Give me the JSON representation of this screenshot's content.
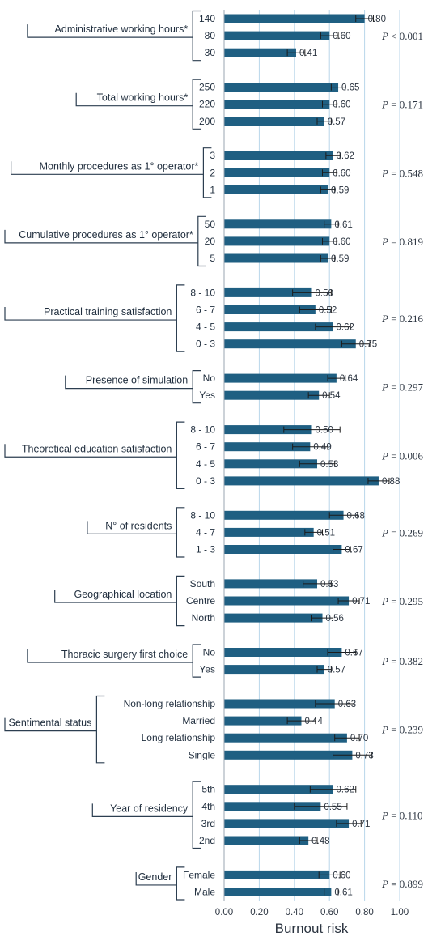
{
  "chart_data": {
    "type": "bar",
    "orientation": "horizontal",
    "xlabel": "Burnout risk",
    "xlim": [
      0,
      1
    ],
    "xticks": [
      "0.00",
      "0.20",
      "0.40",
      "0.60",
      "0.80",
      "1.00"
    ],
    "grid": "vertical",
    "bar_color": "#1f5f82",
    "grid_color": "#b8d6ea",
    "groups": [
      {
        "label": "Administrative working hours*",
        "p_prefix": "P",
        "p_text": " < 0.001",
        "bars": [
          {
            "category": "140",
            "value": 0.8,
            "label": "0.80",
            "err": 0.05
          },
          {
            "category": "80",
            "value": 0.6,
            "label": "0.60",
            "err": 0.05
          },
          {
            "category": "30",
            "value": 0.41,
            "label": "0.41",
            "err": 0.05
          }
        ]
      },
      {
        "label": "Total working hours*",
        "p_prefix": "P",
        "p_text": " = 0.171",
        "bars": [
          {
            "category": "250",
            "value": 0.65,
            "label": "0.65",
            "err": 0.04
          },
          {
            "category": "220",
            "value": 0.6,
            "label": "0.60",
            "err": 0.04
          },
          {
            "category": "200",
            "value": 0.57,
            "label": "0.57",
            "err": 0.04
          }
        ]
      },
      {
        "label": "Monthly procedures as 1° operator*",
        "p_prefix": "P",
        "p_text": " = 0.548",
        "bars": [
          {
            "category": "3",
            "value": 0.62,
            "label": "0.62",
            "err": 0.04
          },
          {
            "category": "2",
            "value": 0.6,
            "label": "0.60",
            "err": 0.04
          },
          {
            "category": "1",
            "value": 0.59,
            "label": "0.59",
            "err": 0.04
          }
        ]
      },
      {
        "label": "Cumulative procedures as 1° operator*",
        "p_prefix": "P",
        "p_text": " = 0.819",
        "bars": [
          {
            "category": "50",
            "value": 0.61,
            "label": "0.61",
            "err": 0.04
          },
          {
            "category": "20",
            "value": 0.6,
            "label": "0.60",
            "err": 0.04
          },
          {
            "category": "5",
            "value": 0.59,
            "label": "0.59",
            "err": 0.04
          }
        ]
      },
      {
        "label": "Practical training satisfaction",
        "p_prefix": "P",
        "p_text": " = 0.216",
        "bars": [
          {
            "category": "8 - 10",
            "value": 0.5,
            "label": "0.50",
            "err": 0.11
          },
          {
            "category": "6 - 7",
            "value": 0.52,
            "label": "0.52",
            "err": 0.09
          },
          {
            "category": "4 - 5",
            "value": 0.62,
            "label": "0.62",
            "err": 0.1
          },
          {
            "category": "0 - 3",
            "value": 0.75,
            "label": "0.75",
            "err": 0.08
          }
        ]
      },
      {
        "label": "Presence of simulation",
        "p_prefix": "P",
        "p_text": " = 0.297",
        "bars": [
          {
            "category": "No",
            "value": 0.64,
            "label": "0.64",
            "err": 0.05
          },
          {
            "category": "Yes",
            "value": 0.54,
            "label": "0.54",
            "err": 0.06
          }
        ]
      },
      {
        "label": "Theoretical education satisfaction",
        "p_prefix": "P",
        "p_text": " = 0.006",
        "bars": [
          {
            "category": "8 - 10",
            "value": 0.5,
            "label": "0.50",
            "err": 0.16
          },
          {
            "category": "6 - 7",
            "value": 0.49,
            "label": "0.49",
            "err": 0.1
          },
          {
            "category": "4 - 5",
            "value": 0.53,
            "label": "0.53",
            "err": 0.1
          },
          {
            "category": "0 - 3",
            "value": 0.88,
            "label": "0.88",
            "err": 0.06
          }
        ]
      },
      {
        "label": "N° of residents",
        "p_prefix": "P",
        "p_text": " = 0.269",
        "bars": [
          {
            "category": "8 - 10",
            "value": 0.68,
            "label": "0.68",
            "err": 0.08
          },
          {
            "category": "4 - 7",
            "value": 0.51,
            "label": "0.51",
            "err": 0.05
          },
          {
            "category": "1 - 3",
            "value": 0.67,
            "label": "0.67",
            "err": 0.05
          }
        ]
      },
      {
        "label": "Geographical location",
        "p_prefix": "P",
        "p_text": " = 0.295",
        "bars": [
          {
            "category": "South",
            "value": 0.53,
            "label": "0.53",
            "err": 0.08
          },
          {
            "category": "Centre",
            "value": 0.71,
            "label": "0.71",
            "err": 0.06
          },
          {
            "category": "North",
            "value": 0.56,
            "label": "0.56",
            "err": 0.06
          }
        ]
      },
      {
        "label": "Thoracic surgery first choice",
        "p_prefix": "P",
        "p_text": " = 0.382",
        "bars": [
          {
            "category": "No",
            "value": 0.67,
            "label": "0.67",
            "err": 0.08
          },
          {
            "category": "Yes",
            "value": 0.57,
            "label": "0.57",
            "err": 0.04
          }
        ]
      },
      {
        "label": "Sentimental status",
        "p_prefix": "P",
        "p_text": " = 0.239",
        "bars": [
          {
            "category": "Non-long relationship",
            "value": 0.63,
            "label": "0.63",
            "err": 0.11
          },
          {
            "category": "Married",
            "value": 0.44,
            "label": "0.44",
            "err": 0.08
          },
          {
            "category": "Long relationship",
            "value": 0.7,
            "label": "0.70",
            "err": 0.07
          },
          {
            "category": "Single",
            "value": 0.73,
            "label": "0.73",
            "err": 0.11
          }
        ]
      },
      {
        "label": "Year of residency",
        "p_prefix": "P",
        "p_text": " = 0.110",
        "bars": [
          {
            "category": "5th",
            "value": 0.62,
            "label": "0.62",
            "err": 0.13
          },
          {
            "category": "4th",
            "value": 0.55,
            "label": "0.55",
            "err": 0.15
          },
          {
            "category": "3rd",
            "value": 0.71,
            "label": "0.71",
            "err": 0.07
          },
          {
            "category": "2nd",
            "value": 0.48,
            "label": "0.48",
            "err": 0.05
          }
        ]
      },
      {
        "label": "Gender",
        "p_prefix": "P",
        "p_text": " = 0.899",
        "bars": [
          {
            "category": "Female",
            "value": 0.6,
            "label": "0.60",
            "err": 0.06
          },
          {
            "category": "Male",
            "value": 0.61,
            "label": "0.61",
            "err": 0.04
          }
        ]
      }
    ]
  }
}
